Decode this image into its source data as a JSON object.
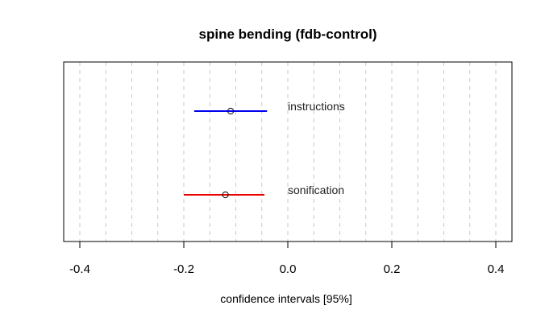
{
  "chart_data": {
    "type": "forest",
    "title": "spine bending (fdb-control)",
    "xlabel": "confidence intervals [95%]",
    "ylabel": "",
    "xlim": [
      -0.4,
      0.4
    ],
    "x_ticks": [
      -0.4,
      -0.2,
      0.0,
      0.2,
      0.4
    ],
    "x_tick_labels": [
      "-0.4",
      "-0.2",
      "0.0",
      "0.2",
      "0.4"
    ],
    "grid_lines": [
      -0.4,
      -0.35,
      -0.3,
      -0.25,
      -0.2,
      -0.15,
      -0.1,
      -0.05,
      0.0,
      0.05,
      0.1,
      0.15,
      0.2,
      0.25,
      0.3,
      0.35,
      0.4
    ],
    "grid": "vertical dashed",
    "series": [
      {
        "name": "instructions",
        "estimate": -0.11,
        "lower": -0.18,
        "upper": -0.04,
        "color": "#0000ee"
      },
      {
        "name": "sonification",
        "estimate": -0.12,
        "lower": -0.2,
        "upper": -0.045,
        "color": "#ee0000"
      }
    ]
  }
}
